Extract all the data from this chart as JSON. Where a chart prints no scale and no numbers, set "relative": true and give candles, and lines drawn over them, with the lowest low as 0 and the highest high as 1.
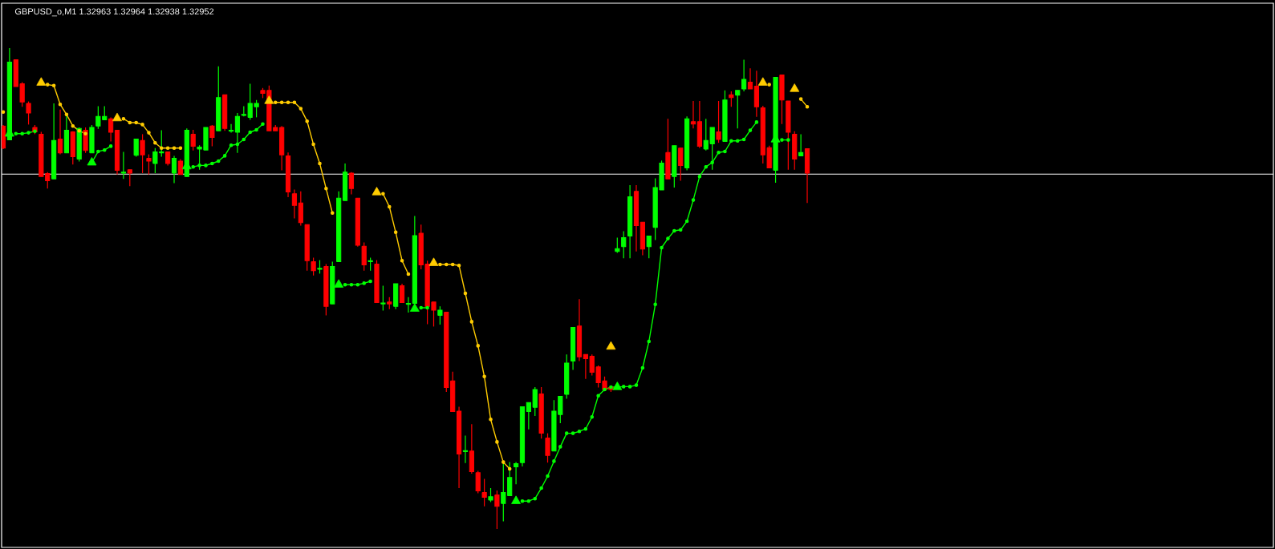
{
  "chart_data": {
    "type": "candlestick",
    "title": "GBPUSD_o,M1 1.32963 1.32964 1.32938 1.32952",
    "relative": true,
    "categories": [
      null,
      null,
      null,
      null,
      null,
      null,
      null,
      null,
      null,
      null,
      null,
      null,
      null,
      null,
      null,
      null,
      null,
      null,
      null,
      null,
      null,
      null,
      null,
      null,
      null,
      null,
      null,
      null,
      null,
      null,
      null,
      null,
      null,
      null,
      null,
      null,
      null,
      null,
      null,
      null,
      null,
      null,
      null,
      null,
      null,
      null,
      null,
      null,
      null,
      null,
      null,
      null,
      null,
      null,
      null,
      null,
      null,
      null,
      null,
      null,
      null,
      null,
      null,
      null,
      null,
      null,
      null,
      null,
      null,
      null,
      null,
      null,
      null,
      null,
      null,
      null,
      null,
      null,
      null,
      null,
      null,
      null,
      null,
      null,
      null,
      null,
      null,
      null,
      null,
      null,
      null,
      null,
      null,
      null,
      null,
      null,
      null,
      null,
      null,
      null,
      null,
      null,
      null,
      null,
      null,
      null,
      null,
      null,
      null,
      null,
      null,
      null,
      null,
      null,
      null,
      null,
      null,
      null,
      null,
      null,
      null,
      null,
      null,
      null,
      null,
      null,
      null,
      null
    ],
    "ohlc": [
      [
        0.838,
        0.84,
        0.79,
        0.792
      ],
      [
        0.809,
        1,
        0.809,
        0.971
      ],
      [
        0.976,
        0.976,
        0.92,
        0.92
      ],
      [
        0.926,
        0.929,
        0.878,
        0.888
      ],
      [
        0.885,
        0.889,
        0.841,
        0.865
      ],
      [
        0.835,
        0.84,
        0.821,
        0.826
      ],
      [
        0.821,
        0.826,
        0.733,
        0.733
      ],
      [
        0.739,
        0.742,
        0.708,
        0.724
      ],
      [
        0.728,
        0.885,
        0.728,
        0.808
      ],
      [
        0.811,
        0.872,
        0.779,
        0.782
      ],
      [
        0.782,
        0.862,
        0.782,
        0.829
      ],
      [
        0.826,
        0.827,
        0.758,
        0.774
      ],
      [
        0.769,
        0.835,
        0.764,
        0.833
      ],
      [
        0.829,
        0.835,
        0.782,
        0.787
      ],
      [
        0.782,
        0.84,
        0.782,
        0.835
      ],
      [
        0.838,
        0.879,
        0.832,
        0.858
      ],
      [
        0.851,
        0.879,
        0.851,
        0.858
      ],
      [
        0.853,
        0.856,
        0.806,
        0.825
      ],
      [
        0.829,
        0.829,
        0.737,
        0.746
      ],
      [
        0.74,
        0.784,
        0.728,
        0.742
      ],
      [
        0.747,
        0.747,
        0.713,
        0.74
      ],
      [
        0.777,
        0.811,
        0.774,
        0.811
      ],
      [
        0.808,
        0.821,
        0.74,
        0.778
      ],
      [
        0.771,
        0.779,
        0.737,
        0.765
      ],
      [
        0.76,
        0.792,
        0.74,
        0.784
      ],
      [
        0.782,
        0.829,
        0.774,
        0.784
      ],
      [
        0.784,
        0.785,
        0.756,
        0.76
      ],
      [
        0.74,
        0.776,
        0.719,
        0.771
      ],
      [
        0.765,
        0.769,
        0.737,
        0.737
      ],
      [
        0.733,
        0.833,
        0.733,
        0.829
      ],
      [
        0.821,
        0.83,
        0.787,
        0.796
      ],
      [
        0.79,
        0.798,
        0.747,
        0.794
      ],
      [
        0.788,
        0.835,
        0.788,
        0.835
      ],
      [
        0.838,
        0.84,
        0.796,
        0.814
      ],
      [
        0.828,
        0.962,
        0.828,
        0.897
      ],
      [
        0.903,
        0.903,
        0.828,
        0.833
      ],
      [
        0.827,
        0.842,
        0.824,
        0.829
      ],
      [
        0.825,
        0.865,
        0.782,
        0.858
      ],
      [
        0.86,
        0.879,
        0.858,
        0.862
      ],
      [
        0.856,
        0.926,
        0.851,
        0.885
      ],
      [
        0.878,
        0.892,
        0.856,
        0.885
      ],
      [
        0.912,
        0.917,
        0.896,
        0.906
      ],
      [
        0.912,
        0.922,
        0.828,
        0.828
      ],
      [
        0.835,
        0.84,
        0.828,
        0.828
      ],
      [
        0.835,
        0.838,
        0.746,
        0.778
      ],
      [
        0.776,
        0.783,
        0.69,
        0.701
      ],
      [
        0.697,
        0.706,
        0.646,
        0.673
      ],
      [
        0.678,
        0.702,
        0.631,
        0.637
      ],
      [
        0.633,
        0.633,
        0.537,
        0.558
      ],
      [
        0.556,
        0.564,
        0.527,
        0.537
      ],
      [
        0.54,
        0.559,
        0.531,
        0.542
      ],
      [
        0.546,
        0.551,
        0.444,
        0.463
      ],
      [
        0.468,
        0.556,
        0.468,
        0.546
      ],
      [
        0.556,
        0.702,
        0.556,
        0.688
      ],
      [
        0.683,
        0.76,
        0.683,
        0.742
      ],
      [
        0.74,
        0.742,
        0.696,
        0.708
      ],
      [
        0.688,
        0.688,
        0.587,
        0.59
      ],
      [
        0.588,
        0.596,
        0.537,
        0.549
      ],
      [
        0.556,
        0.564,
        0.537,
        0.558
      ],
      [
        0.551,
        0.559,
        0.471,
        0.471
      ],
      [
        0.468,
        0.506,
        0.454,
        0.47
      ],
      [
        0.472,
        0.482,
        0.457,
        0.468
      ],
      [
        0.463,
        0.51,
        0.457,
        0.51
      ],
      [
        0.506,
        0.51,
        0.471,
        0.471
      ],
      [
        0.467,
        0.482,
        0.45,
        0.469
      ],
      [
        0.469,
        0.651,
        0.469,
        0.61
      ],
      [
        0.615,
        0.633,
        0.54,
        0.549
      ],
      [
        0.551,
        0.558,
        0.426,
        0.463
      ],
      [
        0.472,
        0.472,
        0.421,
        0.455
      ],
      [
        0.444,
        0.463,
        0.425,
        0.455
      ],
      [
        0.451,
        0.451,
        0.285,
        0.294
      ],
      [
        0.308,
        0.327,
        0.244,
        0.244
      ],
      [
        0.245,
        0.254,
        0.085,
        0.156
      ],
      [
        0.161,
        0.194,
        0.137,
        0.163
      ],
      [
        0.162,
        0.218,
        0.115,
        0.119
      ],
      [
        0.117,
        0.121,
        0.074,
        0.079
      ],
      [
        0.076,
        0.104,
        0.047,
        0.066
      ],
      [
        0.06,
        0.085,
        0.056,
        0.067
      ],
      [
        0.071,
        0.08,
        0,
        0.047
      ],
      [
        0.053,
        0.139,
        0.016,
        0.076
      ],
      [
        0.069,
        0.139,
        0.069,
        0.107
      ],
      [
        0.129,
        0.139,
        0.093,
        0.136
      ],
      [
        0.138,
        0.254,
        0.13,
        0.254
      ],
      [
        0.244,
        0.263,
        0.207,
        0.263
      ],
      [
        0.253,
        0.295,
        0.235,
        0.29
      ],
      [
        0.281,
        0.295,
        0.188,
        0.199
      ],
      [
        0.189,
        0.199,
        0.138,
        0.153
      ],
      [
        0.162,
        0.268,
        0.162,
        0.245
      ],
      [
        0.238,
        0.276,
        0.22,
        0.276
      ],
      [
        0.28,
        0.363,
        0.271,
        0.345
      ],
      [
        0.349,
        0.419,
        0.331,
        0.419
      ],
      [
        0.422,
        0.478,
        0.349,
        0.358
      ],
      [
        0.363,
        0.363,
        0.312,
        0.354
      ],
      [
        0.359,
        0.363,
        0.319,
        0.326
      ],
      [
        0.337,
        0.34,
        0.294,
        0.304
      ],
      [
        0.308,
        0.317,
        0.287,
        0.29
      ],
      [
        0.295,
        0.298,
        0.285,
        0.29
      ],
      [
        0.577,
        0.606,
        0.574,
        0.583
      ],
      [
        0.587,
        0.619,
        0.563,
        0.606
      ],
      [
        0.609,
        0.715,
        0.563,
        0.691
      ],
      [
        0.702,
        0.715,
        0.577,
        0.631
      ],
      [
        0.638,
        0.638,
        0.569,
        0.582
      ],
      [
        0.587,
        0.609,
        0.563,
        0.609
      ],
      [
        0.627,
        0.729,
        0.601,
        0.71
      ],
      [
        0.705,
        0.766,
        0.705,
        0.761
      ],
      [
        0.783,
        0.853,
        0.728,
        0.728
      ],
      [
        0.733,
        0.797,
        0.71,
        0.797
      ],
      [
        0.792,
        0.792,
        0.724,
        0.756
      ],
      [
        0.751,
        0.858,
        0.746,
        0.853
      ],
      [
        0.847,
        0.89,
        0.833,
        0.842
      ],
      [
        0.847,
        0.89,
        0.792,
        0.796
      ],
      [
        0.79,
        0.853,
        0.787,
        0.808
      ],
      [
        0.801,
        0.835,
        0.747,
        0.835
      ],
      [
        0.826,
        0.89,
        0.803,
        0.81
      ],
      [
        0.806,
        0.912,
        0.806,
        0.892
      ],
      [
        0.903,
        0.91,
        0.878,
        0.897
      ],
      [
        0.902,
        0.912,
        0.833,
        0.912
      ],
      [
        0.915,
        0.976,
        0.91,
        0.935
      ],
      [
        0.929,
        0.958,
        0.915,
        0.915
      ],
      [
        0.921,
        0.953,
        0.857,
        0.878
      ],
      [
        0.876,
        0.88,
        0.76,
        0.778
      ],
      [
        0.793,
        0.797,
        0.751,
        0.751
      ],
      [
        0.746,
        0.939,
        0.72,
        0.939
      ],
      [
        0.944,
        0.944,
        0.842,
        0.892
      ],
      [
        0.89,
        0.89,
        0.747,
        0.825
      ],
      [
        0.821,
        0.827,
        0.747,
        0.769
      ],
      [
        0.776,
        0.821,
        0.776,
        0.783
      ],
      [
        0.791,
        0.791,
        0.678,
        0.74
      ]
    ],
    "colors": [
      "#ff0000",
      "#00ff00",
      "#ff0000",
      "#ff0000",
      "#ff0000",
      "#ff0000",
      "#ff0000",
      "#ff0000",
      "#00ff00",
      "#ff0000",
      "#00ff00",
      "#ff0000",
      "#00ff00",
      "#ff0000",
      "#00ff00",
      "#00ff00",
      "#00ff00",
      "#ff0000",
      "#ff0000",
      "#00ff00",
      "#ff0000",
      "#00ff00",
      "#ff0000",
      "#ff0000",
      "#00ff00",
      "#00ff00",
      "#ff0000",
      "#00ff00",
      "#ff0000",
      "#00ff00",
      "#ff0000",
      "#00ff00",
      "#00ff00",
      "#ff0000",
      "#00ff00",
      "#ff0000",
      "#00ff00",
      "#00ff00",
      "#00ff00",
      "#00ff00",
      "#00ff00",
      "#ff0000",
      "#ff0000",
      "#ff0000",
      "#ff0000",
      "#ff0000",
      "#ff0000",
      "#ff0000",
      "#ff0000",
      "#ff0000",
      "#00ff00",
      "#ff0000",
      "#00ff00",
      "#00ff00",
      "#00ff00",
      "#ff0000",
      "#ff0000",
      "#ff0000",
      "#00ff00",
      "#ff0000",
      "#00ff00",
      "#ff0000",
      "#00ff00",
      "#ff0000",
      "#00ff00",
      "#00ff00",
      "#ff0000",
      "#ff0000",
      "#ff0000",
      "#00ff00",
      "#ff0000",
      "#ff0000",
      "#ff0000",
      "#00ff00",
      "#ff0000",
      "#ff0000",
      "#ff0000",
      "#00ff00",
      "#ff0000",
      "#00ff00",
      "#00ff00",
      "#00ff00",
      "#00ff00",
      "#00ff00",
      "#00ff00",
      "#ff0000",
      "#ff0000",
      "#00ff00",
      "#00ff00",
      "#00ff00",
      "#00ff00",
      "#ff0000",
      "#ff0000",
      "#ff0000",
      "#ff0000",
      "#ff0000",
      "#ff0000",
      "#00ff00",
      "#00ff00",
      "#00ff00",
      "#ff0000",
      "#ff0000",
      "#00ff00",
      "#00ff00",
      "#00ff00",
      "#ff0000",
      "#00ff00",
      "#ff0000",
      "#00ff00",
      "#ff0000",
      "#ff0000",
      "#00ff00",
      "#00ff00",
      "#ff0000",
      "#00ff00",
      "#ff0000",
      "#00ff00",
      "#00ff00",
      "#ff0000",
      "#ff0000",
      "#ff0000",
      "#ff0000",
      "#00ff00",
      "#ff0000",
      "#ff0000",
      "#ff0000",
      "#00ff00",
      "#ff0000"
    ],
    "series": [
      {
        "type": "line",
        "color": "#ffcc00",
        "marker": "circle",
        "values": [
          0.867,
          null,
          null,
          null,
          null,
          null,
          null,
          0.924,
          0.922,
          0.883,
          0.862,
          0.838,
          0.828,
          0.822,
          null,
          null,
          null,
          null,
          null,
          0.853,
          0.845,
          0.845,
          0.841,
          0.824,
          0.803,
          0.792,
          0.792,
          0.792,
          0.792,
          null,
          null,
          null,
          null,
          null,
          null,
          null,
          null,
          null,
          null,
          null,
          null,
          null,
          null,
          0.887,
          0.887,
          0.887,
          0.887,
          0.874,
          0.848,
          0.8,
          0.76,
          0.708,
          0.657,
          null,
          null,
          null,
          null,
          null,
          null,
          null,
          0.697,
          0.67,
          0.617,
          0.558,
          0.53,
          null,
          null,
          null,
          null,
          0.55,
          0.55,
          0.55,
          0.548,
          0.49,
          0.431,
          0.381,
          0.317,
          0.228,
          0.181,
          0.139,
          0.125,
          null,
          null,
          null,
          null,
          null,
          null,
          null,
          null,
          null,
          null,
          null,
          null,
          null,
          null,
          null,
          null,
          null,
          null,
          null,
          null,
          null,
          null,
          null,
          null,
          null,
          null,
          null,
          null,
          null,
          null,
          null,
          null,
          null,
          null,
          null,
          null,
          null,
          null,
          null,
          null,
          0.924,
          null,
          null,
          null,
          null,
          0.894,
          0.878
        ]
      },
      {
        "type": "line",
        "color": "#00ff00",
        "marker": "circle",
        "values": [
          null,
          null,
          0.822,
          0.822,
          0.824,
          0.827,
          null,
          null,
          null,
          null,
          null,
          null,
          null,
          null,
          0.762,
          0.785,
          0.788,
          0.796,
          null,
          null,
          null,
          null,
          null,
          null,
          null,
          null,
          null,
          null,
          null,
          null,
          0.753,
          0.756,
          0.756,
          0.76,
          0.765,
          0.776,
          0.798,
          0.8,
          0.81,
          0.825,
          0.83,
          0.842,
          null,
          null,
          null,
          null,
          null,
          null,
          null,
          null,
          null,
          null,
          null,
          null,
          0.508,
          0.508,
          0.508,
          0.511,
          0.515,
          null,
          null,
          null,
          null,
          null,
          null,
          null,
          0.46,
          0.46,
          null,
          null,
          null,
          null,
          null,
          null,
          null,
          null,
          null,
          null,
          null,
          null,
          null,
          null,
          0.058,
          0.058,
          0.063,
          0.085,
          0.11,
          0.141,
          0.171,
          0.199,
          0.199,
          0.203,
          0.208,
          0.233,
          0.277,
          0.29,
          0.295,
          0.295,
          0.296,
          0.296,
          0.299,
          0.335,
          0.39,
          0.467,
          0.585,
          0.604,
          0.62,
          0.622,
          0.64,
          0.684,
          0.733,
          0.753,
          0.762,
          0.783,
          0.785,
          0.807,
          0.807,
          0.81,
          0.829,
          0.846,
          null,
          null,
          null,
          0.809,
          0.809,
          null,
          null,
          null
        ]
      },
      {
        "type": "scatter",
        "color": "#00ff00",
        "marker": "triangle",
        "values": [
          null,
          0.822,
          null,
          null,
          null,
          null,
          null,
          null,
          null,
          null,
          null,
          null,
          null,
          null,
          0.762,
          null,
          null,
          null,
          null,
          null,
          null,
          null,
          null,
          null,
          null,
          null,
          null,
          null,
          null,
          0.754,
          null,
          null,
          null,
          null,
          null,
          null,
          null,
          null,
          null,
          null,
          null,
          null,
          null,
          null,
          null,
          null,
          null,
          null,
          null,
          null,
          null,
          null,
          null,
          0.508,
          null,
          null,
          null,
          null,
          null,
          null,
          null,
          null,
          null,
          null,
          null,
          0.458,
          null,
          null,
          null,
          null,
          null,
          null,
          null,
          null,
          null,
          null,
          null,
          null,
          null,
          null,
          null,
          0.058,
          null,
          null,
          null,
          null,
          null,
          null,
          null,
          null,
          null,
          null,
          null,
          null,
          null,
          null,
          null,
          0.295,
          null,
          null,
          null,
          null,
          null,
          null,
          null,
          null,
          null,
          null,
          null,
          null,
          null,
          null,
          null,
          null,
          null,
          null,
          null,
          null,
          null,
          null,
          null,
          null,
          0.81,
          null,
          null,
          null,
          null,
          null
        ]
      },
      {
        "type": "scatter",
        "color": "#ffcc00",
        "marker": "triangle",
        "values": [
          null,
          null,
          null,
          null,
          null,
          null,
          0.928,
          null,
          null,
          null,
          null,
          null,
          null,
          null,
          null,
          null,
          null,
          null,
          0.854,
          null,
          null,
          null,
          null,
          null,
          null,
          null,
          null,
          null,
          null,
          null,
          null,
          null,
          null,
          null,
          null,
          null,
          null,
          null,
          null,
          null,
          null,
          null,
          0.89,
          null,
          null,
          null,
          null,
          null,
          null,
          null,
          null,
          null,
          null,
          null,
          null,
          null,
          null,
          null,
          null,
          0.7,
          null,
          null,
          null,
          null,
          null,
          null,
          null,
          null,
          0.553,
          null,
          null,
          null,
          null,
          null,
          null,
          null,
          null,
          null,
          null,
          null,
          null,
          null,
          null,
          null,
          null,
          null,
          null,
          null,
          null,
          null,
          null,
          null,
          null,
          null,
          null,
          null,
          0.379,
          null,
          null,
          null,
          null,
          null,
          null,
          null,
          null,
          null,
          null,
          null,
          null,
          null,
          null,
          null,
          null,
          null,
          null,
          null,
          null,
          null,
          null,
          null,
          0.928,
          null,
          null,
          null,
          null,
          0.915,
          null,
          null
        ]
      }
    ],
    "ref_lines": [
      {
        "axis": "y",
        "value": 0.738,
        "color": "#ffffff"
      }
    ]
  }
}
